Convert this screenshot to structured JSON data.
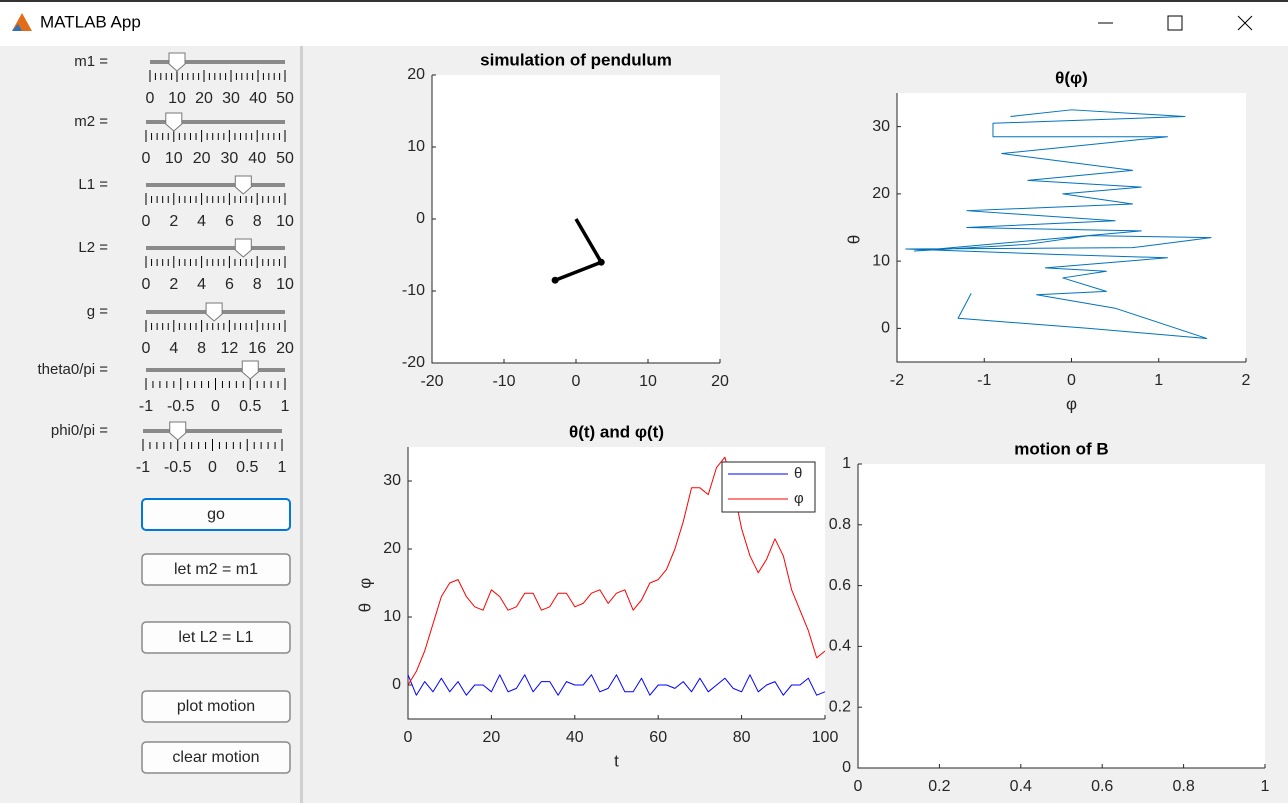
{
  "window": {
    "title": "MATLAB App"
  },
  "controls": [
    {
      "label": "m1 =",
      "value": 10,
      "lim": [
        0,
        50
      ],
      "ticks": [
        0,
        10,
        20,
        30,
        40,
        50
      ]
    },
    {
      "label": "m2 =",
      "value": 10,
      "lim": [
        0,
        50
      ],
      "ticks": [
        0,
        10,
        20,
        30,
        40,
        50
      ]
    },
    {
      "label": "L1 =",
      "value": 7,
      "lim": [
        0,
        10
      ],
      "ticks": [
        0,
        2,
        4,
        6,
        8,
        10
      ]
    },
    {
      "label": "L2 =",
      "value": 7,
      "lim": [
        0,
        10
      ],
      "ticks": [
        0,
        2,
        4,
        6,
        8,
        10
      ]
    },
    {
      "label": "g =",
      "value": 9.8,
      "lim": [
        0,
        20
      ],
      "ticks": [
        0,
        4,
        8,
        12,
        16,
        20
      ]
    },
    {
      "label": "theta0/pi =",
      "value": 0.5,
      "lim": [
        -1,
        1
      ],
      "ticks": [
        -1,
        -0.5,
        0,
        0.5,
        1
      ]
    },
    {
      "label": "phi0/pi =",
      "value": -0.5,
      "lim": [
        -1,
        1
      ],
      "ticks": [
        -1,
        -0.5,
        0,
        0.5,
        1
      ]
    }
  ],
  "buttons": [
    "go",
    "let m2 = m1",
    "let L2 = L1",
    "plot motion",
    "clear motion"
  ],
  "axes": [
    {
      "type": "line",
      "title": "simulation of pendulum",
      "x": [
        0,
        3.5,
        -2.9
      ],
      "y": [
        0,
        -6,
        -8.5
      ],
      "color": "#000000",
      "xlim": [
        -20,
        20
      ],
      "ylim": [
        -20,
        20
      ],
      "xticks": [
        -20,
        -10,
        0,
        10,
        20
      ],
      "yticks": [
        -20,
        -10,
        0,
        10,
        20
      ]
    },
    {
      "type": "line",
      "title": "θ(φ)",
      "xlabel": "φ",
      "ylabel": "θ",
      "color": "#0072bd",
      "x": [
        -1.15,
        -1.3,
        0.2,
        1.55,
        0.5,
        -0.4,
        0.4,
        -0.1,
        0.4,
        -0.3,
        1.1,
        -0.2,
        -1.9,
        0.7,
        1.6,
        0.2,
        -0.5,
        -1.8,
        0.8,
        -1.2,
        0.5,
        -1.2,
        0.7,
        -0.1,
        0.8,
        -0.5,
        0.7,
        -0.8,
        1.1,
        -0.9,
        -0.9,
        1.3,
        0,
        -0.7
      ],
      "y": [
        5.2,
        1.5,
        0,
        -1.5,
        3,
        5,
        5.5,
        7.5,
        8.5,
        9,
        10.5,
        11,
        11.8,
        12,
        13.5,
        13.8,
        12.5,
        11.5,
        14.5,
        15,
        16,
        17.5,
        18.5,
        20,
        21,
        22,
        23.5,
        26,
        28.5,
        28.5,
        30.5,
        31.5,
        32.5,
        31.5
      ],
      "xlim": [
        -2,
        2
      ],
      "ylim": [
        -5,
        35
      ],
      "xticks": [
        -2,
        -1,
        0,
        1,
        2
      ],
      "yticks": [
        0,
        10,
        20,
        30
      ]
    },
    {
      "type": "line",
      "title": "θ(t)  and  φ(t)",
      "xlabel": "t",
      "ylabel": "θ   φ",
      "legend": "upper right",
      "x": [
        0,
        2,
        4,
        6,
        8,
        10,
        12,
        14,
        16,
        18,
        20,
        22,
        24,
        26,
        28,
        30,
        32,
        34,
        36,
        38,
        40,
        42,
        44,
        46,
        48,
        50,
        52,
        54,
        56,
        58,
        60,
        62,
        64,
        66,
        68,
        70,
        72,
        74,
        76,
        78,
        80,
        82,
        84,
        86,
        88,
        90,
        92,
        94,
        96,
        98,
        100
      ],
      "series": [
        {
          "name": "θ",
          "color": "#0000ff",
          "values": [
            1.5,
            -1.5,
            0.5,
            -1,
            1,
            -1,
            0.5,
            -1.5,
            0,
            0,
            -1,
            1.5,
            -1,
            -0.5,
            1.5,
            -1,
            0.5,
            0.5,
            -1.5,
            0.5,
            0,
            0,
            1.5,
            -1,
            -0.5,
            1.5,
            -1,
            -1,
            1,
            -1.5,
            0,
            0,
            -0.5,
            0.5,
            -1,
            1,
            -1,
            0,
            1,
            -0.5,
            -1,
            1.5,
            -1,
            0,
            0.5,
            -1.5,
            0,
            0,
            1,
            -1.5,
            -1
          ]
        },
        {
          "name": "φ",
          "color": "#ff0000",
          "values": [
            0,
            2,
            5,
            9,
            13,
            15,
            15.5,
            13,
            11.5,
            11,
            14,
            13,
            11,
            11.5,
            13.5,
            13.5,
            11,
            11.5,
            13.5,
            13.5,
            11.5,
            12,
            13.5,
            14,
            12,
            13.5,
            14,
            11,
            12.5,
            15,
            15.5,
            17,
            20,
            24,
            29,
            29,
            28,
            32,
            33.5,
            29,
            23,
            19,
            16.5,
            18.5,
            21.5,
            19,
            14,
            11,
            8,
            4,
            5
          ]
        }
      ],
      "xlim": [
        0,
        100
      ],
      "ylim": [
        -5,
        35
      ],
      "xticks": [
        0,
        20,
        40,
        60,
        80,
        100
      ],
      "yticks": [
        0,
        10,
        20,
        30
      ]
    },
    {
      "type": "line",
      "title": "motion of B",
      "xlim": [
        0,
        1
      ],
      "ylim": [
        0,
        1
      ],
      "xticks": [
        0,
        0.2,
        0.4,
        0.6,
        0.8,
        1
      ],
      "yticks": [
        0,
        0.2,
        0.4,
        0.6,
        0.8,
        1
      ]
    }
  ]
}
